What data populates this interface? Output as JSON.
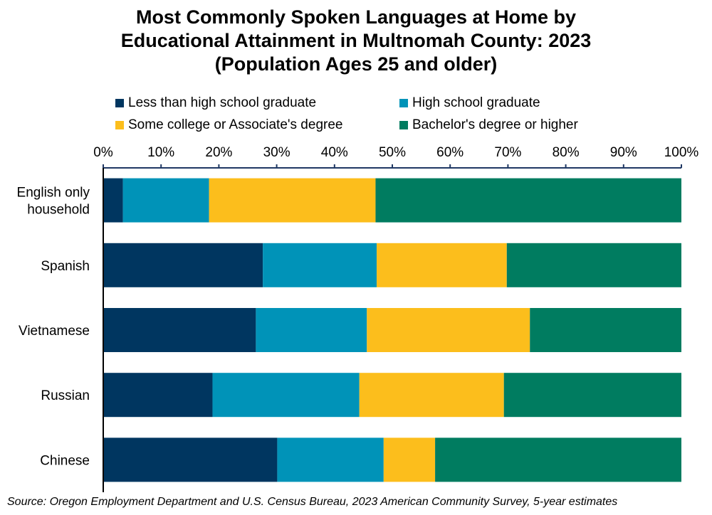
{
  "title_lines": [
    "Most Commonly Spoken Languages at Home by",
    "Educational Attainment in Multnomah County: 2023",
    "(Population Ages 25 and older)"
  ],
  "source": "Source: Oregon Employment Department and U.S. Census Bureau, 2023 American Community Survey, 5-year estimates",
  "chart_data": {
    "type": "bar",
    "orientation": "horizontal",
    "stacked": true,
    "title": "Most Commonly Spoken Languages at Home by Educational Attainment in Multnomah County: 2023 (Population Ages 25 and older)",
    "categories": [
      "English only household",
      "Spanish",
      "Vietnamese",
      "Russian",
      "Chinese"
    ],
    "category_lines": [
      [
        "English only",
        "household"
      ],
      [
        "Spanish"
      ],
      [
        "Vietnamese"
      ],
      [
        "Russian"
      ],
      [
        "Chinese"
      ]
    ],
    "series": [
      {
        "name": "Less than high school graduate",
        "color": "#003660",
        "values": [
          3.4,
          27.6,
          26.4,
          18.9,
          30.1
        ]
      },
      {
        "name": "High school graduate",
        "color": "#0093b8",
        "values": [
          14.9,
          19.7,
          19.2,
          25.4,
          18.4
        ]
      },
      {
        "name": "Some college or Associate's degree",
        "color": "#fcbe1c",
        "values": [
          28.8,
          22.5,
          28.2,
          25.0,
          8.9
        ]
      },
      {
        "name": "Bachelor's degree or higher",
        "color": "#007c60",
        "values": [
          52.9,
          30.2,
          26.2,
          30.7,
          42.6
        ]
      }
    ],
    "xlim": [
      0,
      100
    ],
    "xticks": [
      "0%",
      "10%",
      "20%",
      "30%",
      "40%",
      "50%",
      "60%",
      "70%",
      "80%",
      "90%",
      "100%"
    ],
    "axis_position": "top",
    "legend": "top, two columns",
    "grid": false
  }
}
